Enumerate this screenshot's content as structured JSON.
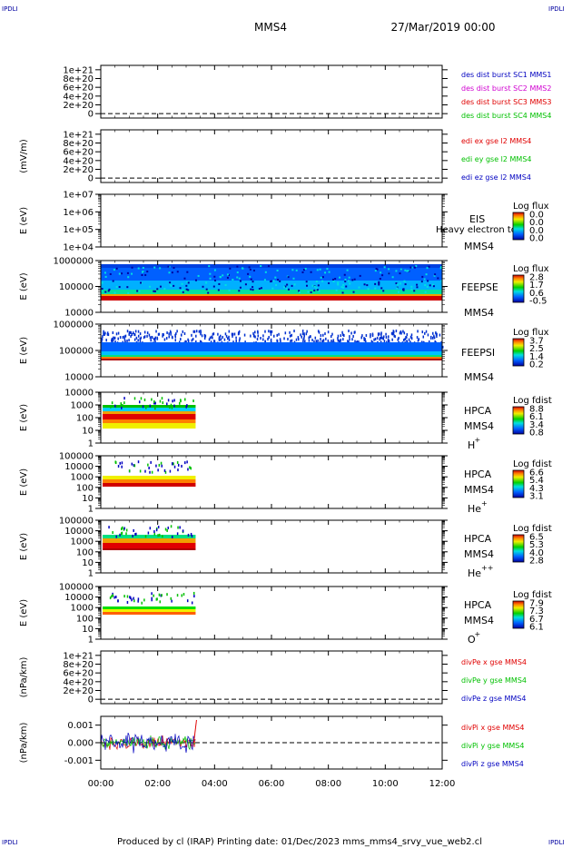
{
  "header": {
    "corner_tl": "IPDLI",
    "corner_tr": "IPDLI",
    "title": "MMS4",
    "date": "27/Mar/2019 00:00"
  },
  "footer": {
    "text": "Produced by cl (IRAP)   Printing date: 01/Dec/2023   mms_mms4_srvy_vue_web2.cl",
    "corner_bl": "IPDLI",
    "corner_br": "IPDLI"
  },
  "colors": {
    "red": "#e00000",
    "green": "#00c000",
    "blue": "#0000c0",
    "magenta": "#d000d0",
    "orange": "#ff8000",
    "yellow": "#f0f000",
    "cyan": "#00d0ff",
    "dark_red": "#b00000"
  },
  "chart_data": [
    {
      "id": "p1",
      "type": "line",
      "xlim": [
        "00:00",
        "12:00"
      ],
      "yticks": [
        "0",
        "2e+20",
        "4e+20",
        "6e+20",
        "8e+20",
        "1e+21"
      ],
      "ylim": [
        -0.1,
        1.1
      ],
      "ylabel": "",
      "zero_line": true,
      "series": [
        {
          "name": "des dist burst SC1 MMS1",
          "color": "#0000c0"
        },
        {
          "name": "des dist burst SC2 MMS2",
          "color": "#d000d0"
        },
        {
          "name": "des dist burst SC3 MMS3",
          "color": "#e00000"
        },
        {
          "name": "des dist burst SC4 MMS4",
          "color": "#00c000"
        }
      ]
    },
    {
      "id": "p2",
      "type": "line",
      "yticks": [
        "0",
        "2e+20",
        "4e+20",
        "6e+20",
        "8e+20",
        "1e+21"
      ],
      "ylim": [
        -0.1,
        1.1
      ],
      "ylabel": "(mV/m)",
      "zero_line": true,
      "series": [
        {
          "name": "edi ex gse l2 MMS4",
          "color": "#e00000"
        },
        {
          "name": "edi ey gse l2 MMS4",
          "color": "#00c000"
        },
        {
          "name": "edi ez gse l2 MMS4",
          "color": "#0000c0"
        }
      ]
    },
    {
      "id": "p3",
      "type": "heatmap",
      "yticks": [
        "1e+04",
        "1e+05",
        "1e+06",
        "1e+07"
      ],
      "ylabel": "E (eV)",
      "instrument": "EIS",
      "sub": "Heavy electron to",
      "sc": "MMS4",
      "cbar_title": "Log flux",
      "cbar_ticks": [
        "0.0",
        "0.0",
        "0.0",
        "0.0"
      ],
      "data_end": null
    },
    {
      "id": "p4",
      "type": "heatmap",
      "yticks": [
        "10000",
        "100000",
        "1000000"
      ],
      "ylabel": "E (eV)",
      "instrument": "FEEPSE",
      "sc": "MMS4",
      "cbar_title": "Log flux",
      "cbar_ticks": [
        "2.8",
        "1.7",
        "0.6",
        "-0.5"
      ],
      "data_end": "12:00"
    },
    {
      "id": "p5",
      "type": "heatmap",
      "yticks": [
        "10000",
        "100000",
        "1000000"
      ],
      "ylabel": "E (eV)",
      "instrument": "FEEPSI",
      "sc": "MMS4",
      "cbar_title": "Log flux",
      "cbar_ticks": [
        "3.7",
        "2.5",
        "1.4",
        "0.2"
      ],
      "data_end": "12:00"
    },
    {
      "id": "p6",
      "type": "heatmap",
      "yticks": [
        "1",
        "10",
        "100",
        "1000",
        "10000"
      ],
      "ylabel": "E (eV)",
      "instrument": "HPCA",
      "sc": "MMS4",
      "species": "H",
      "charge": "+",
      "cbar_title": "Log fdist",
      "cbar_ticks": [
        "8.8",
        "6.1",
        "3.4",
        "0.8"
      ],
      "data_end": "03:20"
    },
    {
      "id": "p7",
      "type": "heatmap",
      "yticks": [
        "1",
        "10",
        "100",
        "1000",
        "10000",
        "100000"
      ],
      "ylabel": "E (eV)",
      "instrument": "HPCA",
      "sc": "MMS4",
      "species": "He",
      "charge": "+",
      "cbar_title": "Log fdist",
      "cbar_ticks": [
        "6.6",
        "5.4",
        "4.3",
        "3.1"
      ],
      "data_end": "03:20"
    },
    {
      "id": "p8",
      "type": "heatmap",
      "yticks": [
        "1",
        "10",
        "100",
        "1000",
        "10000",
        "100000"
      ],
      "ylabel": "E (eV)",
      "instrument": "HPCA",
      "sc": "MMS4",
      "species": "He",
      "charge": "++",
      "cbar_title": "Log fdist",
      "cbar_ticks": [
        "6.5",
        "5.3",
        "4.0",
        "2.8"
      ],
      "data_end": "03:20"
    },
    {
      "id": "p9",
      "type": "heatmap",
      "yticks": [
        "1",
        "10",
        "100",
        "1000",
        "10000",
        "100000"
      ],
      "ylabel": "E (eV)",
      "instrument": "HPCA",
      "sc": "MMS4",
      "species": "O",
      "charge": "+",
      "cbar_title": "Log fdist",
      "cbar_ticks": [
        "7.9",
        "7.3",
        "6.7",
        "6.1"
      ],
      "data_end": "03:20"
    },
    {
      "id": "p10",
      "type": "line",
      "yticks": [
        "0",
        "2e+20",
        "4e+20",
        "6e+20",
        "8e+20",
        "1e+21"
      ],
      "ylim": [
        -0.1,
        1.1
      ],
      "ylabel": "(nPa/km)",
      "zero_line": true,
      "series": [
        {
          "name": "divPe x gse MMS4",
          "color": "#e00000"
        },
        {
          "name": "divPe y gse MMS4",
          "color": "#00c000"
        },
        {
          "name": "divPe z gse MMS4",
          "color": "#0000c0"
        }
      ]
    },
    {
      "id": "p11",
      "type": "line",
      "yticks": [
        "-0.001",
        "0.000",
        "0.001"
      ],
      "ylim": [
        -0.0015,
        0.0015
      ],
      "ylabel": "(nPa/km)",
      "zero_line": true,
      "data_end": "03:20",
      "series": [
        {
          "name": "divPi x gse MMS4",
          "color": "#e00000"
        },
        {
          "name": "divPi y gse MMS4",
          "color": "#00c000"
        },
        {
          "name": "divPi z gse MMS4",
          "color": "#0000c0"
        }
      ]
    }
  ],
  "xaxis": {
    "ticks": [
      "00:00",
      "02:00",
      "04:00",
      "06:00",
      "08:00",
      "10:00",
      "12:00"
    ]
  }
}
